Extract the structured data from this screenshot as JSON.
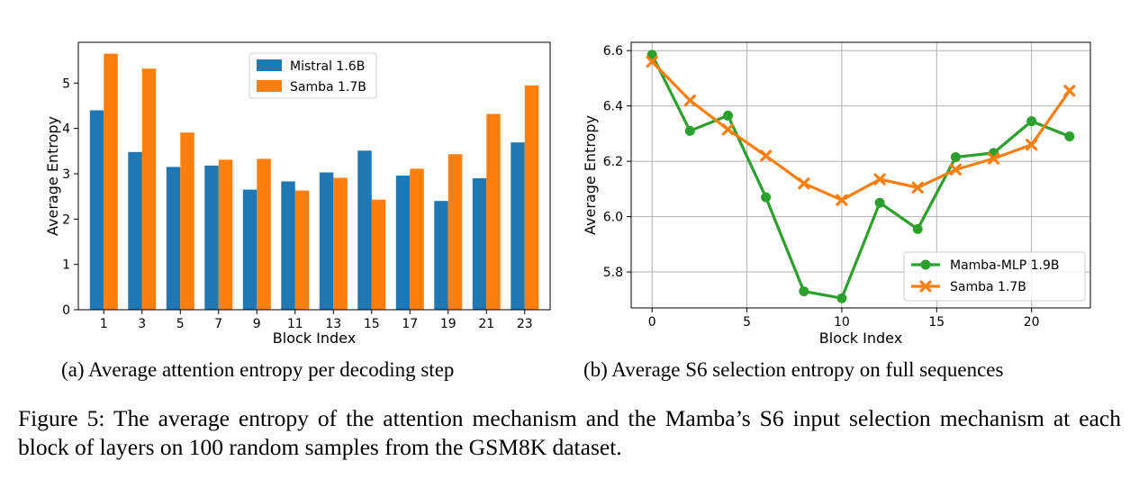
{
  "chart_data": [
    {
      "type": "bar",
      "xlabel": "Block Index",
      "ylabel": "Average Entropy",
      "categories": [
        "1",
        "3",
        "5",
        "7",
        "9",
        "11",
        "13",
        "15",
        "17",
        "19",
        "21",
        "23"
      ],
      "yticks": [
        "0",
        "1",
        "2",
        "3",
        "4",
        "5"
      ],
      "ylim": [
        0,
        5.9
      ],
      "legend_position": "top-center",
      "series": [
        {
          "name": "Mistral 1.6B",
          "color": "#1f77b4",
          "values": [
            4.4,
            3.48,
            3.15,
            3.18,
            2.65,
            2.83,
            3.03,
            3.51,
            2.96,
            2.4,
            2.9,
            3.69
          ]
        },
        {
          "name": "Samba 1.7B",
          "color": "#ff7f0e",
          "values": [
            5.65,
            5.32,
            3.91,
            3.31,
            3.33,
            2.63,
            2.91,
            2.43,
            3.11,
            3.43,
            4.32,
            4.95
          ]
        }
      ]
    },
    {
      "type": "line",
      "xlabel": "Block Index",
      "ylabel": "Average Entropy",
      "xticks": [
        "0",
        "5",
        "10",
        "15",
        "20"
      ],
      "yticks": [
        "5.8",
        "6.0",
        "6.2",
        "6.4",
        "6.6"
      ],
      "xlim": [
        -1.1,
        23.1
      ],
      "ylim": [
        5.67,
        6.63
      ],
      "grid": true,
      "legend_position": "bottom-right",
      "series": [
        {
          "name": "Mamba-MLP 1.9B",
          "color": "#2ca02c",
          "marker": "circle",
          "x": [
            0,
            2,
            4,
            6,
            8,
            10,
            12,
            14,
            16,
            18,
            20,
            22
          ],
          "y": [
            6.585,
            6.31,
            6.365,
            6.07,
            5.73,
            5.705,
            6.05,
            5.955,
            6.215,
            6.23,
            6.345,
            6.29
          ]
        },
        {
          "name": "Samba 1.7B",
          "color": "#ff7f0e",
          "marker": "x",
          "x": [
            0,
            2,
            4,
            6,
            8,
            10,
            12,
            14,
            16,
            18,
            20,
            22
          ],
          "y": [
            6.56,
            6.42,
            6.315,
            6.22,
            6.12,
            6.06,
            6.135,
            6.105,
            6.17,
            6.21,
            6.26,
            6.455
          ]
        }
      ]
    }
  ],
  "subcaptions": {
    "a": "(a) Average attention entropy per decoding step",
    "b": "(b) Average S6 selection entropy on full sequences"
  },
  "caption": "Figure 5: The average entropy of the attention mechanism and the Mamba’s S6 input selection mechanism at each block of layers on 100 random samples from the GSM8K dataset."
}
